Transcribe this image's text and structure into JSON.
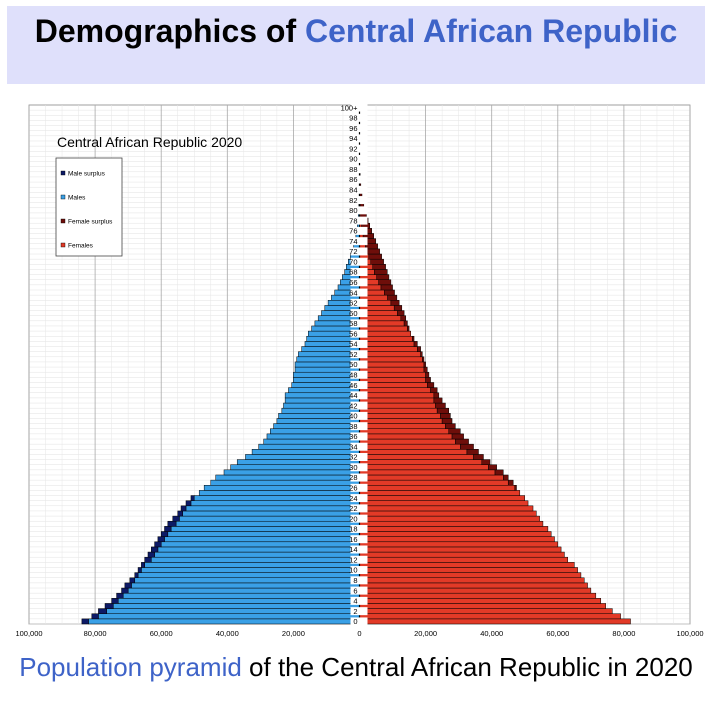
{
  "header": {
    "title_prefix": "Demographics of ",
    "title_link": "Central African Republic"
  },
  "caption": {
    "link_text": "Population pyramid",
    "rest": " of the Central African Republic in 2020"
  },
  "colors": {
    "males": "#3aa0e6",
    "male_surplus": "#0d1a66",
    "females": "#e23a27",
    "female_surplus": "#6e0e0a",
    "header_bg": "#dfe0fb",
    "link": "#3e63c8"
  },
  "chart_data": {
    "type": "bar",
    "orientation": "horizontal-pyramid",
    "title": "Central African Republic 2020",
    "legend": {
      "placement": "top-left",
      "items": [
        {
          "label": "Male surplus",
          "color": "#0d1a66"
        },
        {
          "label": "Males",
          "color": "#3aa0e6"
        },
        {
          "label": "Female surplus",
          "color": "#6e0e0a"
        },
        {
          "label": "Females",
          "color": "#e23a27"
        }
      ]
    },
    "x_ticks": [
      "100,000",
      "80,000",
      "60,000",
      "40,000",
      "20,000",
      "0",
      "20,000",
      "40,000",
      "60,000",
      "80,000",
      "100,000"
    ],
    "xlim": [
      -100000,
      100000
    ],
    "y_ticks": [
      "0",
      "2",
      "4",
      "6",
      "8",
      "10",
      "12",
      "14",
      "16",
      "18",
      "20",
      "22",
      "24",
      "26",
      "28",
      "30",
      "32",
      "34",
      "36",
      "38",
      "40",
      "42",
      "44",
      "46",
      "48",
      "50",
      "52",
      "54",
      "56",
      "58",
      "60",
      "62",
      "64",
      "66",
      "68",
      "70",
      "72",
      "74",
      "76",
      "78",
      "80",
      "82",
      "84",
      "86",
      "88",
      "90",
      "92",
      "94",
      "96",
      "98",
      "100+"
    ],
    "ages": [
      0,
      1,
      2,
      3,
      4,
      5,
      6,
      7,
      8,
      9,
      10,
      11,
      12,
      13,
      14,
      15,
      16,
      17,
      18,
      19,
      20,
      21,
      22,
      23,
      24,
      25,
      26,
      27,
      28,
      29,
      30,
      31,
      32,
      33,
      34,
      35,
      36,
      37,
      38,
      39,
      40,
      41,
      42,
      43,
      44,
      45,
      46,
      47,
      48,
      49,
      50,
      51,
      52,
      53,
      54,
      55,
      56,
      57,
      58,
      59,
      60,
      61,
      62,
      63,
      64,
      65,
      66,
      67,
      68,
      69,
      70,
      71,
      72,
      73,
      74,
      75,
      76,
      77,
      78,
      79,
      80,
      81,
      82,
      83,
      84,
      85,
      86,
      87,
      88,
      89,
      90,
      91,
      92,
      93,
      94,
      95,
      96,
      97,
      98,
      99,
      100
    ],
    "males": [
      84000,
      81000,
      79000,
      77000,
      75000,
      73500,
      72000,
      71000,
      69500,
      68000,
      67000,
      66000,
      65000,
      64000,
      63000,
      62000,
      61000,
      60000,
      59000,
      58000,
      56500,
      55000,
      54000,
      52500,
      51000,
      48500,
      47000,
      45000,
      43500,
      41000,
      39000,
      37000,
      34500,
      32500,
      30500,
      29000,
      28000,
      27000,
      26000,
      25000,
      24500,
      23500,
      23000,
      22500,
      22500,
      21500,
      20500,
      20000,
      20000,
      19500,
      19500,
      19000,
      18500,
      17500,
      16500,
      16000,
      15500,
      14500,
      13500,
      12500,
      11500,
      10500,
      9500,
      8500,
      7500,
      6500,
      5800,
      5200,
      4500,
      4000,
      3400,
      2800,
      2200,
      1800,
      1400,
      1100,
      850,
      650,
      500,
      380,
      280,
      200,
      140,
      100,
      70,
      50,
      35,
      25,
      16,
      10,
      7,
      5,
      3,
      2,
      1,
      1,
      1,
      0,
      0,
      0,
      0
    ],
    "females": [
      82000,
      79000,
      76500,
      74500,
      73000,
      71500,
      70000,
      69000,
      68000,
      67000,
      66000,
      65000,
      63000,
      62000,
      61000,
      60000,
      59000,
      58000,
      57000,
      55500,
      54500,
      53500,
      52500,
      51000,
      50000,
      48500,
      47500,
      46500,
      45000,
      43500,
      41500,
      39500,
      37500,
      36000,
      34500,
      33000,
      31500,
      30500,
      29000,
      28000,
      27500,
      27000,
      26000,
      25000,
      24000,
      23500,
      22500,
      21500,
      21000,
      20500,
      20000,
      19500,
      19000,
      18500,
      17500,
      16500,
      15500,
      15000,
      14500,
      14000,
      13500,
      12800,
      12000,
      11300,
      10600,
      10000,
      9500,
      8900,
      8400,
      7900,
      7300,
      6700,
      6100,
      5500,
      4900,
      4300,
      3700,
      3100,
      2600,
      2100,
      1700,
      1300,
      1000,
      750,
      550,
      400,
      290,
      200,
      140,
      90,
      60,
      40,
      25,
      15,
      9,
      5,
      3,
      2,
      1,
      0,
      0
    ]
  }
}
